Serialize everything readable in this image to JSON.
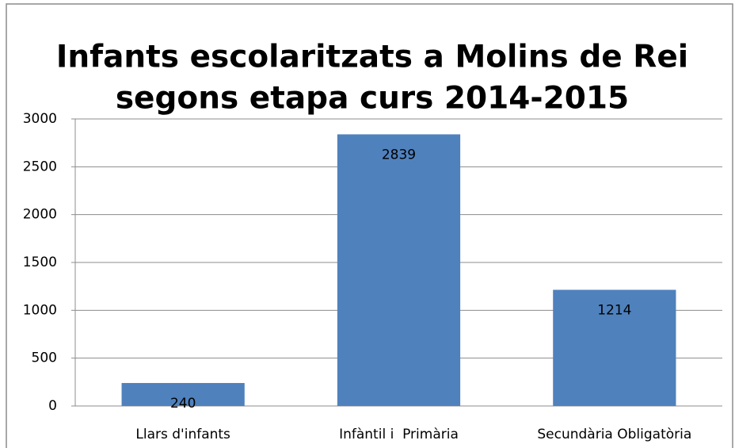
{
  "chart_data": {
    "type": "bar",
    "title": [
      "Infants escolaritzats a Molins de Rei",
      "segons etapa curs 2014-2015"
    ],
    "categories": [
      "Llars d'infants",
      "Infàntil i  Primària",
      "Secundària Obligatòria"
    ],
    "values": [
      240,
      2839,
      1214
    ],
    "color": "#4f81bd",
    "ylim": [
      0,
      3000
    ],
    "yticks": [
      0,
      500,
      1000,
      1500,
      2000,
      2500,
      3000
    ],
    "grid": true
  }
}
